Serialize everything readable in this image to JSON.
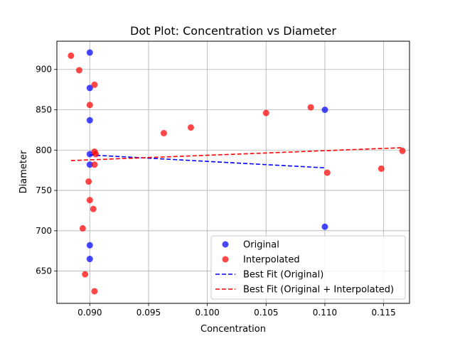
{
  "chart_data": {
    "type": "scatter",
    "title": "Dot Plot: Concentration vs Diameter",
    "xlabel": "Concentration",
    "ylabel": "Diameter",
    "xlim": [
      0.0872,
      0.1172
    ],
    "ylim": [
      610,
      935
    ],
    "xticks": [
      0.09,
      0.095,
      0.1,
      0.105,
      0.11,
      0.115
    ],
    "xtick_labels": [
      "0.090",
      "0.095",
      "0.100",
      "0.105",
      "0.110",
      "0.115"
    ],
    "yticks": [
      650,
      700,
      750,
      800,
      850,
      900
    ],
    "ytick_labels": [
      "650",
      "700",
      "750",
      "800",
      "850",
      "900"
    ],
    "grid": true,
    "legend_position": "bottom-right",
    "series": [
      {
        "name": "Original",
        "kind": "scatter",
        "color": "#0000ff",
        "points": [
          [
            0.09,
            921
          ],
          [
            0.09,
            877
          ],
          [
            0.09,
            837
          ],
          [
            0.09,
            795
          ],
          [
            0.09,
            782
          ],
          [
            0.09,
            682
          ],
          [
            0.09,
            665
          ],
          [
            0.11,
            850
          ],
          [
            0.11,
            705
          ]
        ]
      },
      {
        "name": "Interpolated",
        "kind": "scatter",
        "color": "#ff0000",
        "points": [
          [
            0.0884,
            917
          ],
          [
            0.0891,
            899
          ],
          [
            0.0904,
            881
          ],
          [
            0.09,
            856
          ],
          [
            0.0963,
            821
          ],
          [
            0.0986,
            828
          ],
          [
            0.105,
            846
          ],
          [
            0.1088,
            853
          ],
          [
            0.0904,
            798
          ],
          [
            0.0905,
            795
          ],
          [
            0.0904,
            782
          ],
          [
            0.0899,
            761
          ],
          [
            0.09,
            738
          ],
          [
            0.0903,
            727
          ],
          [
            0.0894,
            703
          ],
          [
            0.0896,
            646
          ],
          [
            0.0904,
            625
          ],
          [
            0.1102,
            772
          ],
          [
            0.1148,
            777
          ],
          [
            0.1166,
            799
          ]
        ]
      },
      {
        "name": "Best Fit (Original)",
        "kind": "line",
        "style": "dashed",
        "color": "#0000ff",
        "points": [
          [
            0.09,
            794
          ],
          [
            0.11,
            778
          ]
        ]
      },
      {
        "name": "Best Fit (Original + Interpolated)",
        "kind": "line",
        "style": "dashed",
        "color": "#ff0000",
        "points": [
          [
            0.0884,
            787
          ],
          [
            0.1166,
            803
          ]
        ]
      }
    ]
  }
}
